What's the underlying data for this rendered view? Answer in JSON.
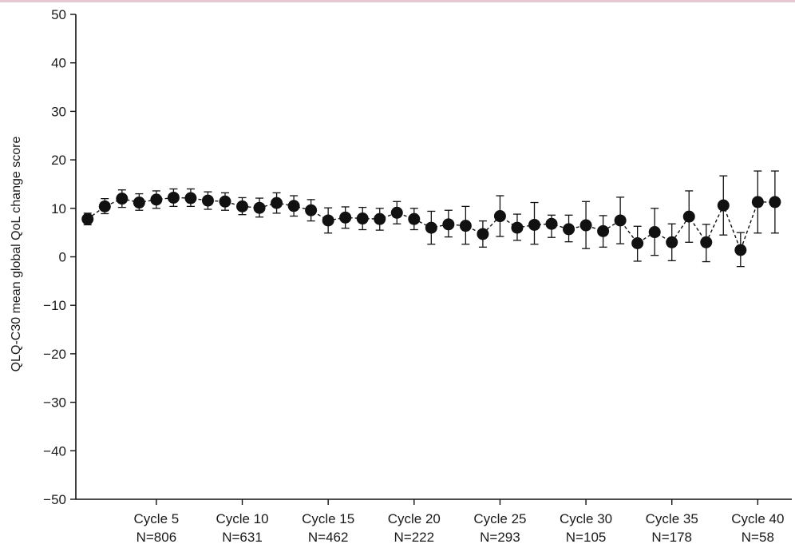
{
  "colors": {
    "accent_rule": "#e6c8d3",
    "ink": "#111111"
  },
  "chart_data": {
    "type": "scatter",
    "title": "",
    "ylabel": "QLQ-C30 mean global QoL change score",
    "xlabel": "",
    "ylim": [
      -50,
      50
    ],
    "yticks": [
      "50",
      "40",
      "30",
      "20",
      "10",
      "0",
      "−10",
      "−20",
      "−30",
      "−40",
      "−50"
    ],
    "ytick_values": [
      50,
      40,
      30,
      20,
      10,
      0,
      -10,
      -20,
      -30,
      -40,
      -50
    ],
    "xlim": [
      0.5,
      40.5
    ],
    "x_tick_positions": [
      5,
      10,
      15,
      20,
      25,
      30,
      35,
      40
    ],
    "x_tick_labels": [
      {
        "cycle": "Cycle 5",
        "n": "N=806"
      },
      {
        "cycle": "Cycle 10",
        "n": "N=631"
      },
      {
        "cycle": "Cycle 15",
        "n": "N=462"
      },
      {
        "cycle": "Cycle 20",
        "n": "N=222"
      },
      {
        "cycle": "Cycle 25",
        "n": "N=293"
      },
      {
        "cycle": "Cycle 30",
        "n": "N=105"
      },
      {
        "cycle": "Cycle 35",
        "n": "N=178"
      },
      {
        "cycle": "Cycle 40",
        "n": "N=58"
      }
    ],
    "marker": "filled-circle",
    "connector": "dashed",
    "error_bars": true,
    "grid": false,
    "legend": "none",
    "series": [
      {
        "x": [
          1,
          2,
          3,
          4,
          5,
          6,
          7,
          8,
          9,
          10,
          11,
          12,
          13,
          14,
          15,
          16,
          17,
          18,
          19,
          20,
          21,
          22,
          23,
          24,
          25,
          26,
          27,
          28,
          29,
          30,
          31,
          32,
          33,
          34,
          35,
          36,
          37,
          38,
          39,
          40,
          41
        ],
        "y": [
          7.8,
          10.4,
          12.0,
          11.2,
          11.8,
          12.2,
          12.1,
          11.6,
          11.4,
          10.4,
          10.1,
          11.1,
          10.5,
          9.6,
          7.5,
          8.1,
          7.9,
          7.8,
          9.1,
          7.8,
          6.0,
          6.7,
          6.4,
          4.7,
          8.4,
          6.0,
          6.6,
          6.8,
          5.7,
          6.5,
          5.3,
          7.5,
          2.8,
          5.1,
          3.0,
          8.3,
          3.0,
          10.6,
          1.4,
          11.3,
          11.3
        ],
        "y_low": [
          6.6,
          8.9,
          10.2,
          9.6,
          10.0,
          10.4,
          10.4,
          9.8,
          9.6,
          8.7,
          8.2,
          9.0,
          8.4,
          7.4,
          4.9,
          5.9,
          5.6,
          5.5,
          6.8,
          5.6,
          2.6,
          4.1,
          2.6,
          2.0,
          4.2,
          3.4,
          2.6,
          4.0,
          3.1,
          1.7,
          2.0,
          2.7,
          -0.9,
          0.3,
          -0.8,
          3.0,
          -1.0,
          4.5,
          -2.0,
          4.9,
          4.9
        ],
        "y_high": [
          9.0,
          12.0,
          13.8,
          13.0,
          13.6,
          14.0,
          14.0,
          13.4,
          13.2,
          12.2,
          12.1,
          13.2,
          12.6,
          11.8,
          10.1,
          10.3,
          10.2,
          10.0,
          11.4,
          10.0,
          9.4,
          9.6,
          10.4,
          7.4,
          12.6,
          8.8,
          11.2,
          8.6,
          8.6,
          11.4,
          8.5,
          12.3,
          6.3,
          10.0,
          6.8,
          13.6,
          6.7,
          16.7,
          5.0,
          17.7,
          17.7
        ]
      }
    ]
  }
}
